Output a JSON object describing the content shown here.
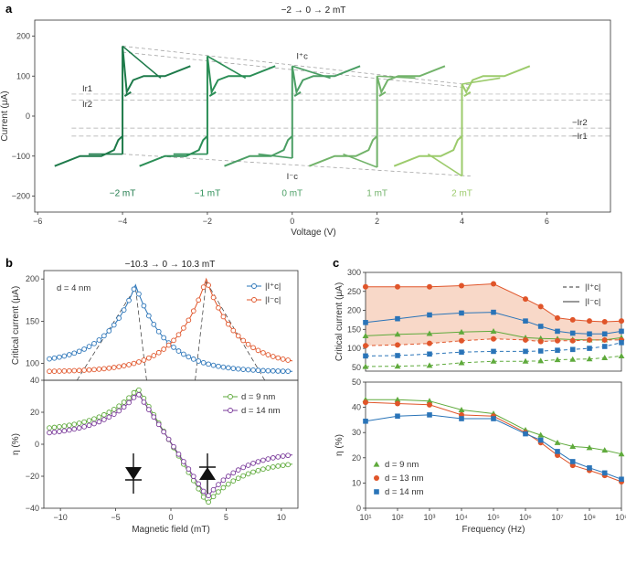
{
  "figure": {
    "panels": [
      "a",
      "b",
      "c"
    ]
  },
  "colors": {
    "g1": "#1e7a4a",
    "g2": "#2b8e56",
    "g3": "#4a9e64",
    "g4": "#72b36a",
    "g5": "#9ccb6c",
    "blue": "#2a74b8",
    "red": "#e0552a",
    "green": "#5faa3c",
    "purple": "#7a3a9a",
    "fill": "#f8d8c8"
  },
  "chart_data": [
    {
      "id": "a",
      "type": "line",
      "title": "−2 → 0 → 2 mT",
      "xlabel": "Voltage (V)",
      "ylabel": "Current (μA)",
      "xlim": [
        -6.5,
        7.5
      ],
      "ylim": [
        -240,
        240
      ],
      "xticks": [
        -6,
        -4,
        -2,
        0,
        2,
        4,
        6
      ],
      "yticks": [
        -200,
        -100,
        0,
        100,
        200
      ],
      "ref_lines": [
        {
          "label": "I_r1",
          "value": 55
        },
        {
          "label": "I_r2",
          "value": 40
        },
        {
          "label": "−I_r2",
          "value": -30
        },
        {
          "label": "−I_r1",
          "value": -50
        }
      ],
      "ref_labels_left": [
        "Ir1",
        "Ir2"
      ],
      "ref_labels_right": [
        "−Ir2",
        "−Ir1"
      ],
      "critical_labels": [
        "I⁺c",
        "I⁻c"
      ],
      "series": [
        {
          "name": "−2 mT",
          "offset": -4,
          "ic_pos": 175,
          "ic_neg": -95
        },
        {
          "name": "−1 mT",
          "offset": -2,
          "ic_pos": 150,
          "ic_neg": -95
        },
        {
          "name": "0 mT",
          "offset": 0,
          "ic_pos": 125,
          "ic_neg": -105
        },
        {
          "name": "1 mT",
          "offset": 2,
          "ic_pos": 100,
          "ic_neg": -128
        },
        {
          "name": "2 mT",
          "offset": 4,
          "ic_pos": 80,
          "ic_neg": -150
        }
      ]
    },
    {
      "id": "b-top",
      "type": "line",
      "title": "−10.3 → 0 → 10.3 mT",
      "annotation": "d = 4 nm",
      "ylabel": "Critical current (μA)",
      "xlim": [
        -11.5,
        11.5
      ],
      "ylim": [
        80,
        210
      ],
      "yticks": [
        100,
        150,
        200
      ],
      "legend": [
        "|I⁺c|",
        "|I⁻c|"
      ],
      "series": [
        {
          "name": "|I⁺c|",
          "peak_x": -3.2,
          "peak_y": 193,
          "base_left": 100,
          "base_right": 90
        },
        {
          "name": "|I⁻c|",
          "peak_x": 3.2,
          "peak_y": 200,
          "base_left": 90,
          "base_right": 97
        }
      ]
    },
    {
      "id": "b-bottom",
      "type": "line",
      "xlabel": "Magnetic field (mT)",
      "ylabel": "η (%)",
      "xlim": [
        -11.5,
        11.5
      ],
      "ylim": [
        -40,
        40
      ],
      "xticks": [
        -10,
        -5,
        0,
        5,
        10
      ],
      "yticks": [
        -40,
        -20,
        0,
        20,
        40
      ],
      "legend": [
        "d = 9 nm",
        "d = 14 nm"
      ],
      "series": [
        {
          "name": "d = 9 nm",
          "peak": 35,
          "trough": -37,
          "end_left": 8,
          "end_right": -10
        },
        {
          "name": "d = 14 nm",
          "peak": 32,
          "trough": -33,
          "end_left": 5,
          "end_right": -4
        }
      ]
    },
    {
      "id": "c-top",
      "type": "line",
      "ylabel": "Critical current (μA)",
      "xscale": "log",
      "xlim": [
        10,
        1000000000
      ],
      "ylim": [
        40,
        300
      ],
      "yticks": [
        50,
        100,
        150,
        200,
        250,
        300
      ],
      "legend": [
        "|I⁺c|",
        "|I⁻c|"
      ],
      "x": [
        10,
        100,
        1000,
        10000,
        100000,
        1000000,
        3000000,
        10000000,
        30000000,
        100000000,
        300000000,
        1000000000
      ],
      "series": [
        {
          "name": "13 nm |I⁻c|",
          "values": [
            262,
            262,
            262,
            265,
            270,
            230,
            210,
            180,
            175,
            172,
            170,
            172
          ]
        },
        {
          "name": "14 nm |I⁻c|",
          "values": [
            168,
            178,
            188,
            193,
            195,
            172,
            158,
            145,
            140,
            138,
            138,
            145
          ]
        },
        {
          "name": "9 nm |I⁻c|",
          "values": [
            133,
            137,
            139,
            143,
            145,
            128,
            126,
            125,
            123,
            122,
            122,
            128
          ]
        },
        {
          "name": "13 nm |I⁺c|",
          "values": [
            107,
            109,
            113,
            120,
            125,
            122,
            118,
            120,
            120,
            122,
            122,
            122
          ]
        },
        {
          "name": "14 nm |I⁺c|",
          "values": [
            80,
            81,
            85,
            90,
            92,
            92,
            93,
            95,
            97,
            100,
            105,
            115
          ]
        },
        {
          "name": "9 nm |I⁺c|",
          "values": [
            52,
            53,
            55,
            62,
            66,
            66,
            67,
            70,
            71,
            72,
            75,
            80
          ]
        }
      ]
    },
    {
      "id": "c-bottom",
      "type": "line",
      "xlabel": "Frequency (Hz)",
      "ylabel": "η (%)",
      "xscale": "log",
      "xlim": [
        10,
        1000000000
      ],
      "ylim": [
        0,
        50
      ],
      "yticks": [
        0,
        10,
        20,
        30,
        40,
        50
      ],
      "xticks": [
        "10¹",
        "10²",
        "10³",
        "10⁴",
        "10⁵",
        "10⁶",
        "10⁷",
        "10⁸",
        "10⁹"
      ],
      "x": [
        10,
        100,
        1000,
        10000,
        100000,
        1000000,
        3000000,
        10000000,
        30000000,
        100000000,
        300000000,
        1000000000
      ],
      "legend": [
        "d = 9 nm",
        "d = 13 nm",
        "d = 14 nm"
      ],
      "series": [
        {
          "name": "d = 9 nm",
          "values": [
            43,
            43,
            42.5,
            39,
            37.5,
            31,
            29,
            26,
            24.5,
            24,
            23,
            21.5
          ]
        },
        {
          "name": "d = 13 nm",
          "values": [
            42,
            41.5,
            41,
            37,
            36.5,
            30,
            26,
            21,
            17,
            15,
            13,
            10.5
          ]
        },
        {
          "name": "d = 14 nm",
          "values": [
            34.5,
            36.5,
            37,
            35.5,
            35.5,
            29.5,
            27,
            22.5,
            18.5,
            16,
            14,
            11.5
          ]
        }
      ]
    }
  ]
}
